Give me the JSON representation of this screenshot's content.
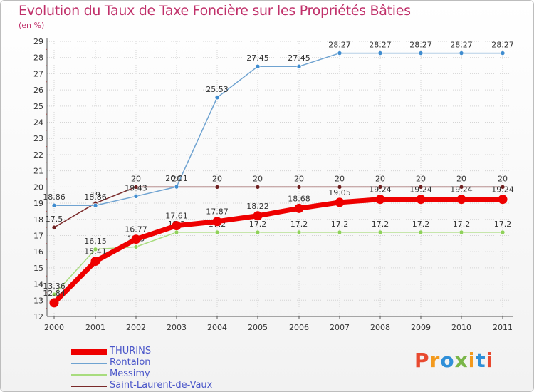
{
  "header": {
    "title": "Evolution du Taux de Taxe Foncière sur les Propriétés Bâties",
    "subtitle": "(en %)"
  },
  "logo": {
    "text": "Proxiti",
    "colors": [
      "#e8492f",
      "#f39a1d",
      "#2f8fd8",
      "#7ab648",
      "#f39a1d",
      "#2f8fd8",
      "#e8492f"
    ]
  },
  "chart_data": {
    "type": "line",
    "title": "Evolution du Taux de Taxe Foncière sur les Propriétés Bâties",
    "ylabel": "(en %)",
    "xlabel": "",
    "categories": [
      "2000",
      "2001",
      "2002",
      "2003",
      "2004",
      "2005",
      "2006",
      "2007",
      "2008",
      "2009",
      "2010",
      "2011"
    ],
    "ylim": [
      12,
      29
    ],
    "yticks": [
      12,
      13,
      14,
      15,
      16,
      17,
      18,
      19,
      20,
      21,
      22,
      23,
      24,
      25,
      26,
      27,
      28,
      29
    ],
    "grid": true,
    "legend": "bottom-left",
    "series": [
      {
        "name": "Saint-Laurent-de-Vaux",
        "color": "#7a2a2a",
        "point_color": "#6e1f1f",
        "labels": [
          "17.5",
          "19",
          "20",
          "20",
          "20",
          "20",
          "20",
          "20",
          "20",
          "20",
          "20",
          "20"
        ],
        "values": [
          17.5,
          19,
          20,
          20,
          20,
          20,
          20,
          20,
          20,
          20,
          20,
          20
        ]
      },
      {
        "name": "Rontalon",
        "color": "#6fa3d1",
        "point_color": "#3f8ccf",
        "labels": [
          "18.86",
          "18.86",
          "19.43",
          "20.01",
          "25.53",
          "27.45",
          "27.45",
          "28.27",
          "28.27",
          "28.27",
          "28.27",
          "28.27"
        ],
        "values": [
          18.86,
          18.86,
          19.43,
          20.01,
          25.53,
          27.45,
          27.45,
          28.27,
          28.27,
          28.27,
          28.27,
          28.27
        ]
      },
      {
        "name": "Messimy",
        "color": "#a8dc7e",
        "point_color": "#8fd15a",
        "labels": [
          "13.36",
          "16.15",
          "16.3",
          "17.2",
          "17.2",
          "17.2",
          "17.2",
          "17.2",
          "17.2",
          "17.2",
          "17.2",
          "17.2"
        ],
        "values": [
          13.36,
          16.15,
          16.3,
          17.2,
          17.2,
          17.2,
          17.2,
          17.2,
          17.2,
          17.2,
          17.2,
          17.2
        ]
      },
      {
        "name": "THURINS",
        "color": "#ee0000",
        "point_color": "#ee0000",
        "labels": [
          "12.84",
          "15.41",
          "16.77",
          "17.61",
          "17.87",
          "18.22",
          "18.68",
          "19.05",
          "19.24",
          "19.24",
          "19.24",
          "19.24"
        ],
        "values": [
          12.84,
          15.41,
          16.77,
          17.61,
          17.87,
          18.22,
          18.68,
          19.05,
          19.24,
          19.24,
          19.24,
          19.24
        ]
      }
    ],
    "legend_order": [
      "THURINS",
      "Rontalon",
      "Messimy",
      "Saint-Laurent-de-Vaux"
    ]
  }
}
